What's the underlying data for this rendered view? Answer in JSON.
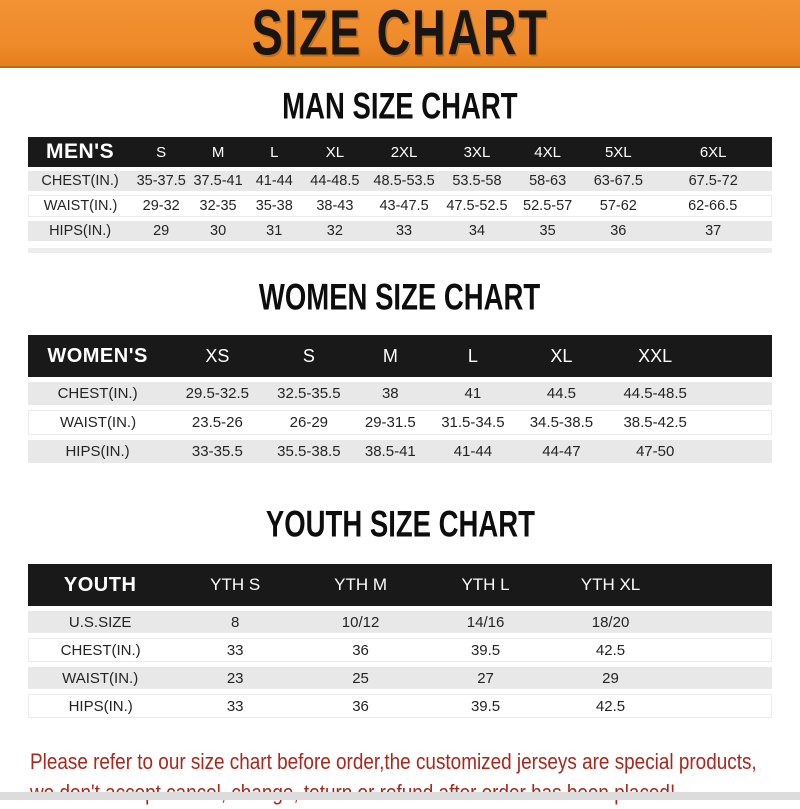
{
  "banner": {
    "title": "SIZE CHART"
  },
  "sections": {
    "men": {
      "title": "MAN SIZE CHART",
      "header_label": "MEN'S",
      "columns": [
        "S",
        "M",
        "L",
        "XL",
        "2XL",
        "3XL",
        "4XL",
        "5XL",
        "6XL"
      ],
      "rows": [
        {
          "label": "CHEST(IN.)",
          "values": [
            "35-37.5",
            "37.5-41",
            "41-44",
            "44-48.5",
            "48.5-53.5",
            "53.5-58",
            "58-63",
            "63-67.5",
            "67.5-72"
          ]
        },
        {
          "label": "WAIST(IN.)",
          "values": [
            "29-32",
            "32-35",
            "35-38",
            "38-43",
            "43-47.5",
            "47.5-52.5",
            "52.5-57",
            "57-62",
            "62-66.5"
          ]
        },
        {
          "label": "HIPS(IN.)",
          "values": [
            "29",
            "30",
            "31",
            "32",
            "33",
            "34",
            "35",
            "36",
            "37"
          ]
        }
      ]
    },
    "women": {
      "title": "WOMEN SIZE CHART",
      "header_label": "WOMEN'S",
      "columns": [
        "XS",
        "S",
        "M",
        "L",
        "XL",
        "XXL"
      ],
      "rows": [
        {
          "label": "CHEST(IN.)",
          "values": [
            "29.5-32.5",
            "32.5-35.5",
            "38",
            "41",
            "44.5",
            "44.5-48.5"
          ]
        },
        {
          "label": "WAIST(IN.)",
          "values": [
            "23.5-26",
            "26-29",
            "29-31.5",
            "31.5-34.5",
            "34.5-38.5",
            "38.5-42.5"
          ]
        },
        {
          "label": "HIPS(IN.)",
          "values": [
            "33-35.5",
            "35.5-38.5",
            "38.5-41",
            "41-44",
            "44-47",
            "47-50"
          ]
        }
      ]
    },
    "youth": {
      "title": "YOUTH SIZE CHART",
      "header_label": "YOUTH",
      "columns": [
        "YTH S",
        "YTH M",
        "YTH L",
        "YTH XL"
      ],
      "rows": [
        {
          "label": "U.S.SIZE",
          "values": [
            "8",
            "10/12",
            "14/16",
            "18/20"
          ]
        },
        {
          "label": "CHEST(IN.)",
          "values": [
            "33",
            "36",
            "39.5",
            "42.5"
          ]
        },
        {
          "label": "WAIST(IN.)",
          "values": [
            "23",
            "25",
            "27",
            "29"
          ]
        },
        {
          "label": "HIPS(IN.)",
          "values": [
            "33",
            "36",
            "39.5",
            "42.5"
          ]
        }
      ]
    }
  },
  "footer": {
    "line1": "Please refer to our size chart before order,the customized jerseys are special products,",
    "line2": "we don't accept cancel, change, teturn or refund after order has been placed!"
  },
  "colors": {
    "banner_orange": "#ee8a2a",
    "header_bar_black": "#191919",
    "row_gray": "#e8e8e8",
    "footer_red": "#a8281d"
  }
}
